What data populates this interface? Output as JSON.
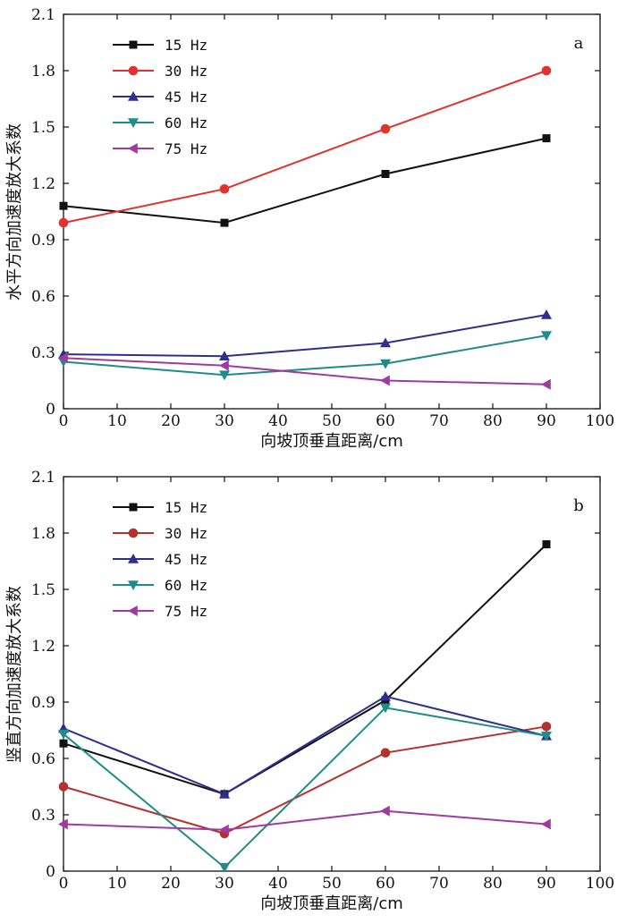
{
  "chart_data": [
    {
      "type": "line",
      "panel_label": "a",
      "xlabel": "向坡顶垂直距离/cm",
      "ylabel": "水平方向加速度放大系数",
      "xlim": [
        0,
        100
      ],
      "ylim": [
        0,
        2.1
      ],
      "xticks": [
        "0",
        "10",
        "20",
        "30",
        "40",
        "50",
        "60",
        "70",
        "80",
        "90",
        "100"
      ],
      "yticks": [
        "0",
        "0.3",
        "0.6",
        "0.9",
        "1.2",
        "1.5",
        "1.8",
        "2.1"
      ],
      "x": [
        0,
        30,
        60,
        90
      ],
      "legend_position": "top-left",
      "grid": false,
      "series": [
        {
          "name": "15 Hz",
          "values": [
            1.08,
            0.99,
            1.25,
            1.44
          ],
          "color": "#111111",
          "marker": "square"
        },
        {
          "name": "30 Hz",
          "values": [
            0.99,
            1.17,
            1.49,
            1.8
          ],
          "color": "#e0322f",
          "marker": "circle"
        },
        {
          "name": "45 Hz",
          "values": [
            0.29,
            0.28,
            0.35,
            0.5
          ],
          "color": "#2e2f8c",
          "marker": "triangle-up"
        },
        {
          "name": "60 Hz",
          "values": [
            0.25,
            0.18,
            0.24,
            0.39
          ],
          "color": "#1f8c8a",
          "marker": "triangle-down"
        },
        {
          "name": "75 Hz",
          "values": [
            0.27,
            0.23,
            0.15,
            0.13
          ],
          "color": "#a03a9f",
          "marker": "triangle-left"
        }
      ]
    },
    {
      "type": "line",
      "panel_label": "b",
      "xlabel": "向坡顶垂直距离/cm",
      "ylabel": "竖直方向加速度放大系数",
      "xlim": [
        0,
        100
      ],
      "ylim": [
        0,
        2.1
      ],
      "xticks": [
        "0",
        "10",
        "20",
        "30",
        "40",
        "50",
        "60",
        "70",
        "80",
        "90",
        "100"
      ],
      "yticks": [
        "0",
        "0.3",
        "0.6",
        "0.9",
        "1.2",
        "1.5",
        "1.8",
        "2.1"
      ],
      "x": [
        0,
        30,
        60,
        90
      ],
      "legend_position": "top-left",
      "grid": false,
      "series": [
        {
          "name": "15 Hz",
          "values": [
            0.68,
            0.41,
            0.91,
            1.74
          ],
          "color": "#111111",
          "marker": "square"
        },
        {
          "name": "30 Hz",
          "values": [
            0.45,
            0.2,
            0.63,
            0.77
          ],
          "color": "#b3322f",
          "marker": "circle"
        },
        {
          "name": "45 Hz",
          "values": [
            0.76,
            0.41,
            0.93,
            0.72
          ],
          "color": "#2e2f8c",
          "marker": "triangle-up"
        },
        {
          "name": "60 Hz",
          "values": [
            0.73,
            0.02,
            0.87,
            0.72
          ],
          "color": "#1f8c8a",
          "marker": "triangle-down"
        },
        {
          "name": "75 Hz",
          "values": [
            0.25,
            0.22,
            0.32,
            0.25
          ],
          "color": "#a03a9f",
          "marker": "triangle-left"
        }
      ]
    }
  ]
}
